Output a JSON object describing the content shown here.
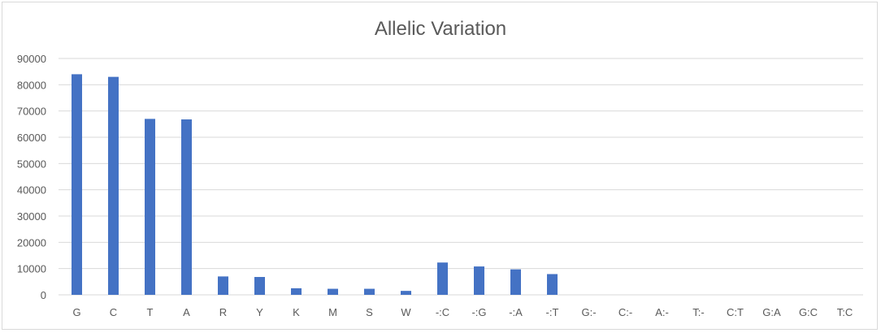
{
  "chart_data": {
    "type": "bar",
    "title": "Allelic Variation",
    "xlabel": "",
    "ylabel": "",
    "categories": [
      "G",
      "C",
      "T",
      "A",
      "R",
      "Y",
      "K",
      "M",
      "S",
      "W",
      "-:C",
      "-:G",
      "-:A",
      "-:T",
      "G:-",
      "C:-",
      "A:-",
      "T:-",
      "C:T",
      "G:A",
      "G:C",
      "T:C"
    ],
    "values": [
      84000,
      83000,
      67000,
      66800,
      7000,
      6800,
      2500,
      2300,
      2300,
      1500,
      12300,
      10800,
      9700,
      7900,
      0,
      0,
      0,
      0,
      0,
      0,
      0,
      0
    ],
    "ylim": [
      0,
      90000
    ],
    "yticks": [
      0,
      10000,
      20000,
      30000,
      40000,
      50000,
      60000,
      70000,
      80000,
      90000
    ],
    "grid": true,
    "legend": "none",
    "colors": {
      "bar": "#4472C4",
      "grid": "#d9d9d9",
      "text": "#595959"
    }
  }
}
